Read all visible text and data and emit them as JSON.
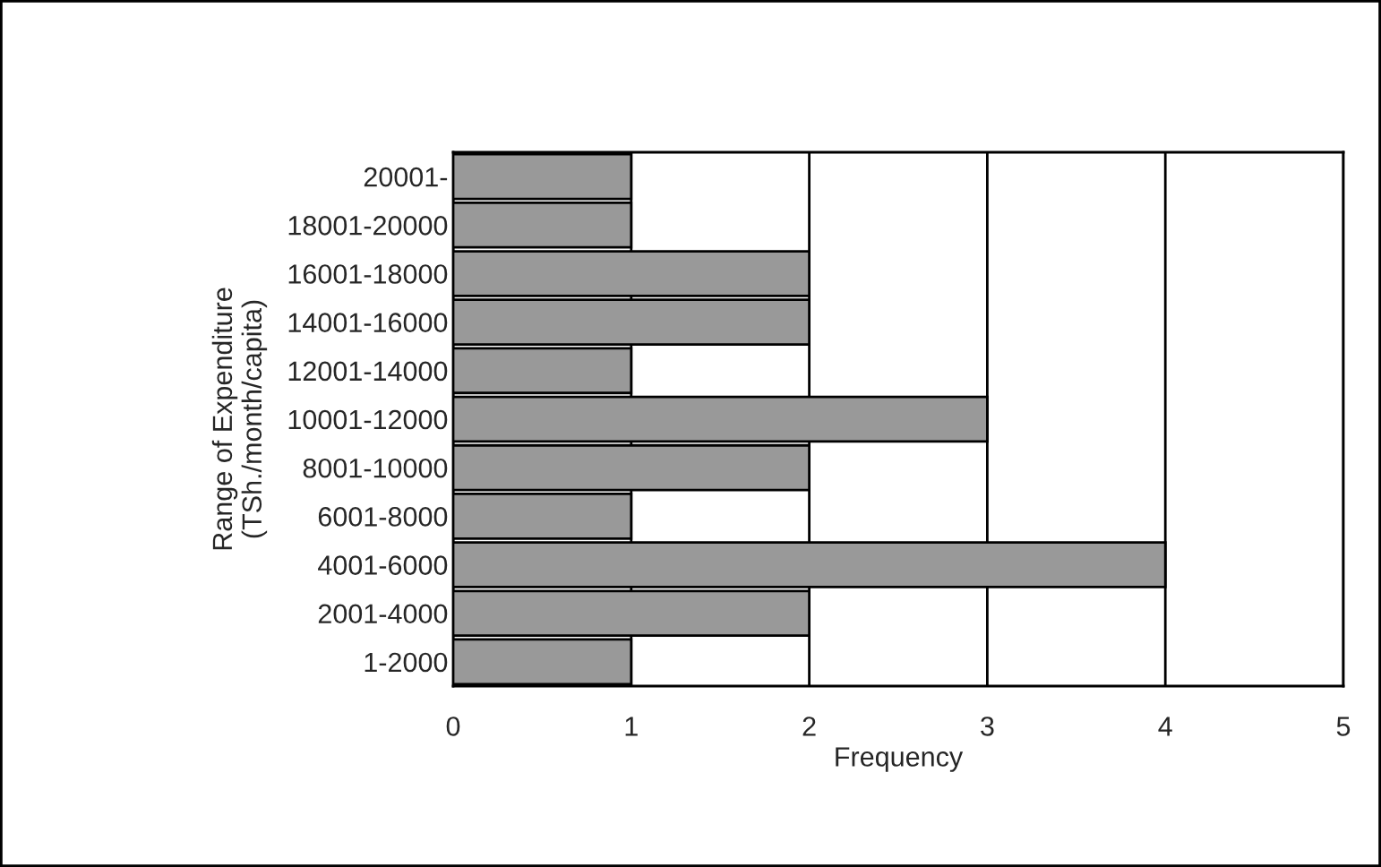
{
  "chart_data": {
    "type": "bar",
    "orientation": "horizontal",
    "xlabel": "Frequency",
    "ylabel": "Range of Expenditure\n(TSh./month/capita)",
    "categories": [
      "20001-",
      "18001-20000",
      "16001-18000",
      "14001-16000",
      "12001-14000",
      "10001-12000",
      "8001-10000",
      "6001-8000",
      "4001-6000",
      "2001-4000",
      "1-2000"
    ],
    "values": [
      1,
      1,
      2,
      2,
      1,
      3,
      2,
      1,
      4,
      2,
      1
    ],
    "color": "#999999",
    "xlim": [
      0,
      5
    ],
    "xticks": [
      0,
      1,
      2,
      3,
      4,
      5
    ],
    "grid": "x",
    "legend": false
  }
}
